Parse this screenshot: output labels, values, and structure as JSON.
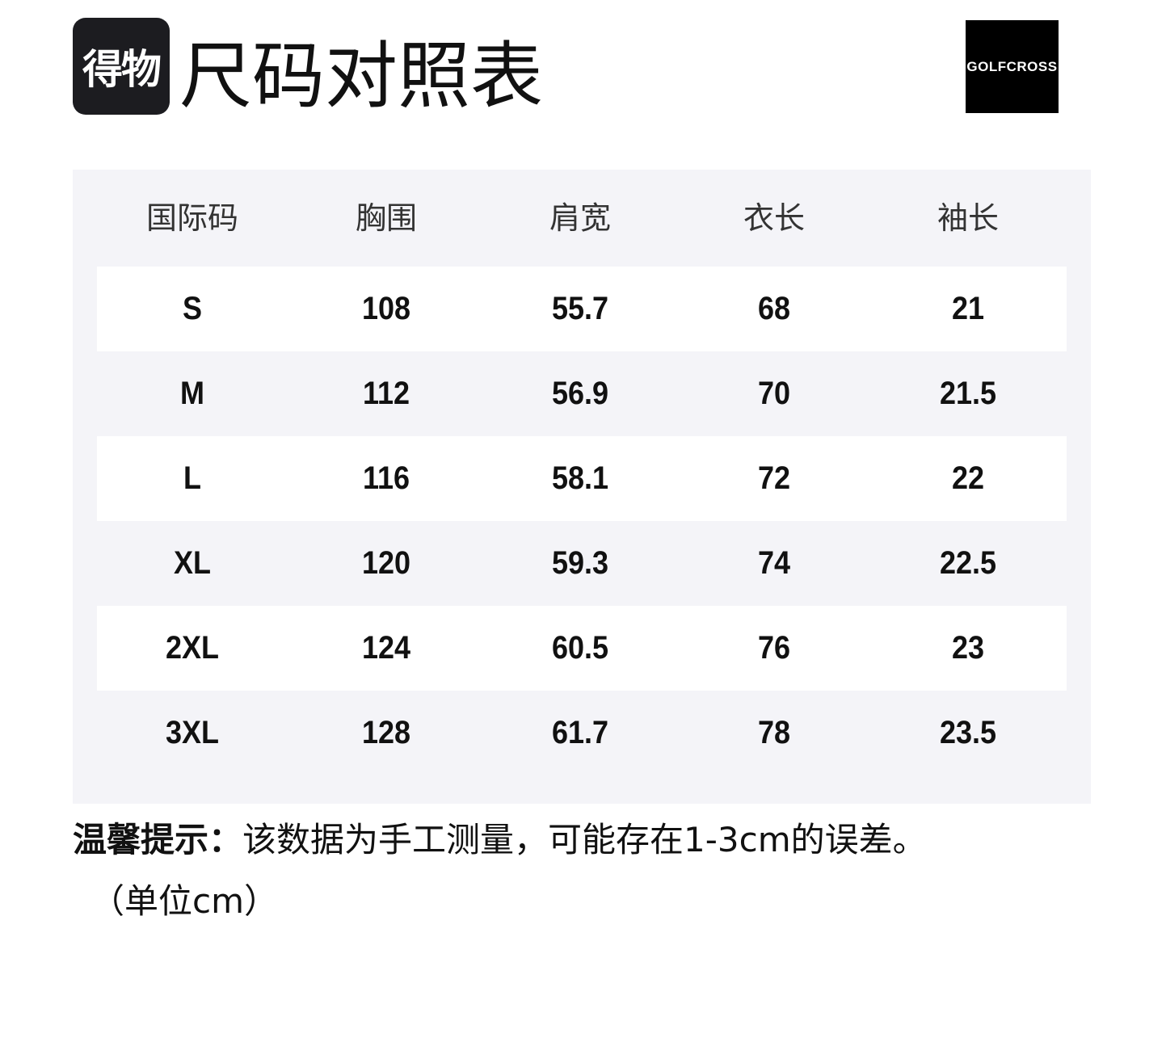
{
  "header": {
    "logo_text": "得物",
    "title": "尺码对照表",
    "brand_text": "GOLFCROSS"
  },
  "table": {
    "columns": [
      "国际码",
      "胸围",
      "肩宽",
      "衣长",
      "袖长"
    ],
    "rows": [
      [
        "S",
        "108",
        "55.7",
        "68",
        "21"
      ],
      [
        "M",
        "112",
        "56.9",
        "70",
        "21.5"
      ],
      [
        "L",
        "116",
        "58.1",
        "72",
        "22"
      ],
      [
        "XL",
        "120",
        "59.3",
        "74",
        "22.5"
      ],
      [
        "2XL",
        "124",
        "60.5",
        "76",
        "23"
      ],
      [
        "3XL",
        "128",
        "61.7",
        "78",
        "23.5"
      ]
    ]
  },
  "footer": {
    "tip_label": "温馨提示：",
    "tip_text": "该数据为手工测量，可能存在1-3cm的误差。",
    "unit": "（单位cm）"
  }
}
